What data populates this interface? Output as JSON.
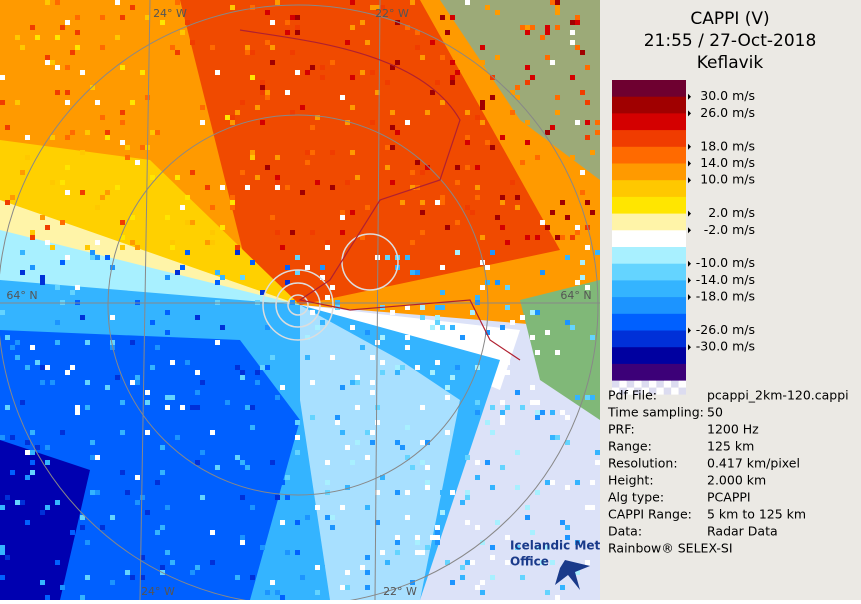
{
  "map": {
    "labels": [
      "24° W",
      "22° W",
      "64° N",
      "64° N",
      "24° W",
      "22° W"
    ]
  },
  "panel": {
    "title": [
      "CAPPI (V)",
      "21:55 / 27-Oct-2018",
      "Keflavik"
    ],
    "legend": {
      "colors": [
        "#6e0030",
        "#a00000",
        "#d40000",
        "#f03c00",
        "#ff6a00",
        "#ff9a00",
        "#ffc800",
        "#ffe600",
        "#fff4a8",
        "#ffffff",
        "#a8f0ff",
        "#64d4ff",
        "#34b4ff",
        "#1c94ff",
        "#0060ff",
        "#0030d8",
        "#0000a0",
        "#3c0078"
      ],
      "labels": [
        "30.0 m/s",
        "26.0 m/s",
        "18.0 m/s",
        "14.0 m/s",
        "10.0 m/s",
        "2.0 m/s",
        "-2.0 m/s",
        "-10.0 m/s",
        "-14.0 m/s",
        "-18.0 m/s",
        "-26.0 m/s",
        "-30.0 m/s"
      ]
    },
    "info": [
      [
        "Pdf File:",
        "pcappi_2km-120.cappi"
      ],
      [
        "Time sampling:",
        "50"
      ],
      [
        "PRF:",
        "1200 Hz"
      ],
      [
        "Range:",
        "125 km"
      ],
      [
        "Resolution:",
        "0.417 km/pixel"
      ],
      [
        "Height:",
        "2.000 km"
      ],
      [
        "Alg type:",
        "PCAPPI"
      ],
      [
        "CAPPI Range:",
        "5 km to 125 km"
      ],
      [
        "Data:",
        "Radar Data"
      ]
    ],
    "footer": "Rainbow® SELEX-SI",
    "logo": [
      "Icelandic Met",
      "Office"
    ]
  }
}
